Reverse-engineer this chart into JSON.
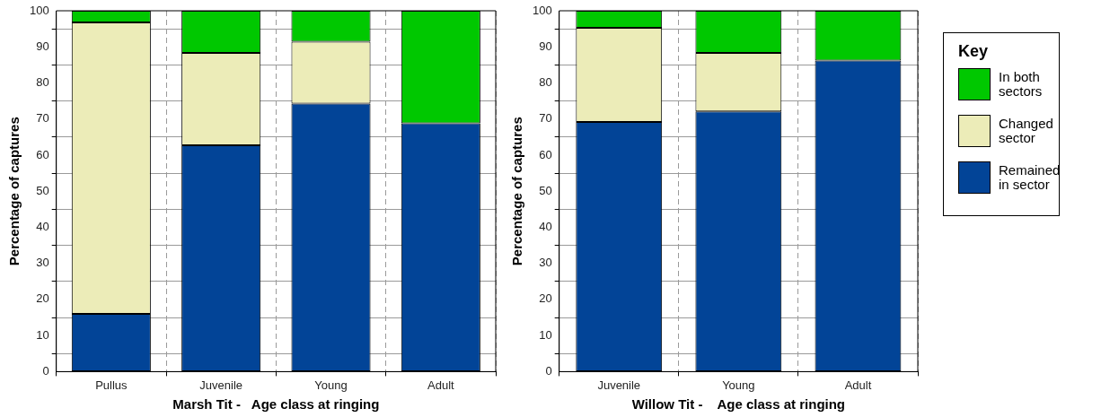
{
  "chart_data": [
    {
      "type": "bar",
      "stacked": true,
      "xlabel": "Marsh Tit -   Age class at ringing",
      "ylabel": "Percentage of captures",
      "categories": [
        "Pullus",
        "Juvenile",
        "Young",
        "Adult"
      ],
      "series": [
        {
          "color": "#024497",
          "values": [
            16,
            62.7,
            74.3,
            68.8
          ]
        },
        {
          "color": "#ececb8",
          "values": [
            80.8,
            25.6,
            17.1,
            null
          ]
        },
        {
          "color": "#00c800",
          "values": [
            3.2,
            11.7,
            8.6,
            31.2
          ]
        }
      ],
      "ylim": [
        0,
        100
      ],
      "yticks": [
        0,
        10,
        20,
        30,
        40,
        50,
        60,
        70,
        80,
        90,
        100
      ],
      "grid": true
    },
    {
      "type": "bar",
      "stacked": true,
      "xlabel": "Willow Tit -    Age class at ringing",
      "ylabel": "Percentage of captures",
      "legend_title": "Key",
      "legend": "right",
      "categories": [
        "Juvenile",
        "Young",
        "Adult"
      ],
      "series": [
        {
          "name": "Remained in sector",
          "color": "#024497",
          "values": [
            69.2,
            72.1,
            86.2
          ]
        },
        {
          "name": "Changed sector",
          "color": "#ececb8",
          "values": [
            26.1,
            16.2,
            null
          ]
        },
        {
          "name": "In both sectors",
          "color": "#00c800",
          "values": [
            4.7,
            11.7,
            13.8
          ]
        }
      ],
      "ylim": [
        0,
        100
      ],
      "yticks": [
        0,
        10,
        20,
        30,
        40,
        50,
        60,
        70,
        80,
        90,
        100
      ],
      "grid": true
    }
  ]
}
